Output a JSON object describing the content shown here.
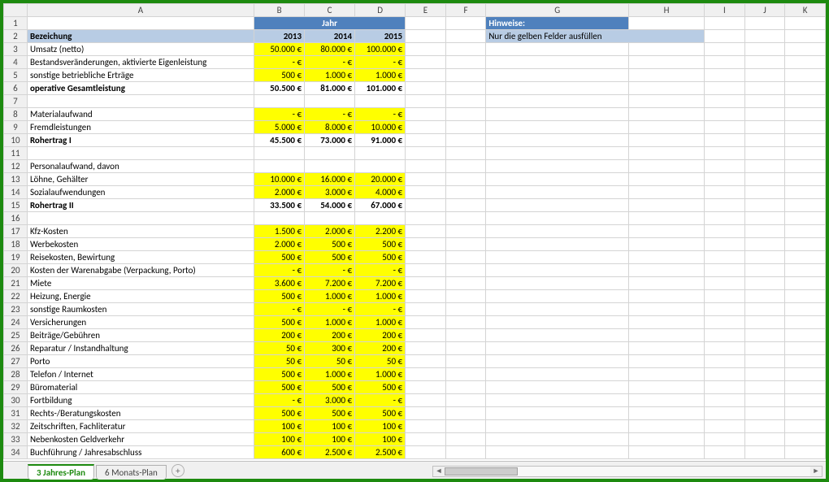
{
  "colWidths": {
    "A": 270,
    "B": 60,
    "C": 60,
    "D": 60,
    "E": 48,
    "F": 48,
    "G": 170,
    "H": 90,
    "I": 48,
    "J": 48,
    "K": 48
  },
  "columns": [
    "A",
    "B",
    "C",
    "D",
    "E",
    "F",
    "G",
    "H",
    "I",
    "J",
    "K"
  ],
  "jahrHeader": "Jahr",
  "hinweiseLabel": "Hinweise:",
  "hinweiseText": "Nur die gelben Felder ausfüllen",
  "headerRow": {
    "label": "Bezeichung",
    "y2013": "2013",
    "y2014": "2014",
    "y2015": "2015"
  },
  "rows": [
    {
      "n": 3,
      "label": "Umsatz (netto)",
      "v": [
        "50.000 €",
        "80.000 €",
        "100.000 €"
      ],
      "yellow": true
    },
    {
      "n": 4,
      "label": "Bestandsveränderungen, aktivierte Eigenleistung",
      "v": [
        "-   €",
        "-   €",
        "-   €"
      ],
      "yellow": true
    },
    {
      "n": 5,
      "label": "sonstige betriebliche Erträge",
      "v": [
        "500 €",
        "1.000 €",
        "1.000 €"
      ],
      "yellow": true
    },
    {
      "n": 6,
      "label": "operative Gesamtleistung",
      "v": [
        "50.500 €",
        "81.000 €",
        "101.000 €"
      ],
      "bold": true,
      "total": true
    },
    {
      "n": 7,
      "label": "",
      "v": [
        "",
        "",
        ""
      ]
    },
    {
      "n": 8,
      "label": "Materialaufwand",
      "v": [
        "-   €",
        "-   €",
        "-   €"
      ],
      "yellow": true
    },
    {
      "n": 9,
      "label": "Fremdleistungen",
      "v": [
        "5.000 €",
        "8.000 €",
        "10.000 €"
      ],
      "yellow": true
    },
    {
      "n": 10,
      "label": "Rohertrag I",
      "v": [
        "45.500 €",
        "73.000 €",
        "91.000 €"
      ],
      "bold": true,
      "total": true
    },
    {
      "n": 11,
      "label": "",
      "v": [
        "",
        "",
        ""
      ]
    },
    {
      "n": 12,
      "label": "Personalaufwand, davon",
      "v": [
        "",
        "",
        ""
      ]
    },
    {
      "n": 13,
      "label": "Löhne, Gehälter",
      "v": [
        "10.000 €",
        "16.000 €",
        "20.000 €"
      ],
      "yellow": true,
      "indent": true
    },
    {
      "n": 14,
      "label": "Sozialaufwendungen",
      "v": [
        "2.000 €",
        "3.000 €",
        "4.000 €"
      ],
      "yellow": true,
      "indent": true
    },
    {
      "n": 15,
      "label": "Rohertrag II",
      "v": [
        "33.500 €",
        "54.000 €",
        "67.000 €"
      ],
      "bold": true,
      "total": true
    },
    {
      "n": 16,
      "label": "",
      "v": [
        "",
        "",
        ""
      ]
    },
    {
      "n": 17,
      "label": "Kfz-Kosten",
      "v": [
        "1.500 €",
        "2.000 €",
        "2.200 €"
      ],
      "yellow": true
    },
    {
      "n": 18,
      "label": "Werbekosten",
      "v": [
        "2.000 €",
        "500 €",
        "500 €"
      ],
      "yellow": true
    },
    {
      "n": 19,
      "label": "Reisekosten, Bewirtung",
      "v": [
        "500 €",
        "500 €",
        "500 €"
      ],
      "yellow": true
    },
    {
      "n": 20,
      "label": "Kosten der Warenabgabe (Verpackung, Porto)",
      "v": [
        "-   €",
        "-   €",
        "-   €"
      ],
      "yellow": true
    },
    {
      "n": 21,
      "label": "Miete",
      "v": [
        "3.600 €",
        "7.200 €",
        "7.200 €"
      ],
      "yellow": true
    },
    {
      "n": 22,
      "label": "Heizung, Energie",
      "v": [
        "500 €",
        "1.000 €",
        "1.000 €"
      ],
      "yellow": true
    },
    {
      "n": 23,
      "label": "sonstige Raumkosten",
      "v": [
        "-   €",
        "-   €",
        "-   €"
      ],
      "yellow": true
    },
    {
      "n": 24,
      "label": "Versicherungen",
      "v": [
        "500 €",
        "1.000 €",
        "1.000 €"
      ],
      "yellow": true
    },
    {
      "n": 25,
      "label": "Beiträge/Gebühren",
      "v": [
        "200 €",
        "200 €",
        "200 €"
      ],
      "yellow": true
    },
    {
      "n": 26,
      "label": "Reparatur / Instandhaltung",
      "v": [
        "50 €",
        "300 €",
        "200 €"
      ],
      "yellow": true
    },
    {
      "n": 27,
      "label": "Porto",
      "v": [
        "50 €",
        "50 €",
        "50 €"
      ],
      "yellow": true
    },
    {
      "n": 28,
      "label": "Telefon / Internet",
      "v": [
        "500 €",
        "1.000 €",
        "1.000 €"
      ],
      "yellow": true
    },
    {
      "n": 29,
      "label": "Büromaterial",
      "v": [
        "500 €",
        "500 €",
        "500 €"
      ],
      "yellow": true
    },
    {
      "n": 30,
      "label": "Fortbildung",
      "v": [
        "-   €",
        "3.000 €",
        "-   €"
      ],
      "yellow": true
    },
    {
      "n": 31,
      "label": "Rechts-/Beratungskosten",
      "v": [
        "500 €",
        "500 €",
        "500 €"
      ],
      "yellow": true
    },
    {
      "n": 32,
      "label": "Zeitschriften, Fachliteratur",
      "v": [
        "100 €",
        "100 €",
        "100 €"
      ],
      "yellow": true
    },
    {
      "n": 33,
      "label": "Nebenkosten Geldverkehr",
      "v": [
        "100 €",
        "100 €",
        "100 €"
      ],
      "yellow": true
    },
    {
      "n": 34,
      "label": "Buchführung / Jahresabschluss",
      "v": [
        "600 €",
        "2.500 €",
        "2.500 €"
      ],
      "yellow": true
    }
  ],
  "tabs": {
    "active": "3 Jahres-Plan",
    "other": "6 Monats-Plan"
  }
}
